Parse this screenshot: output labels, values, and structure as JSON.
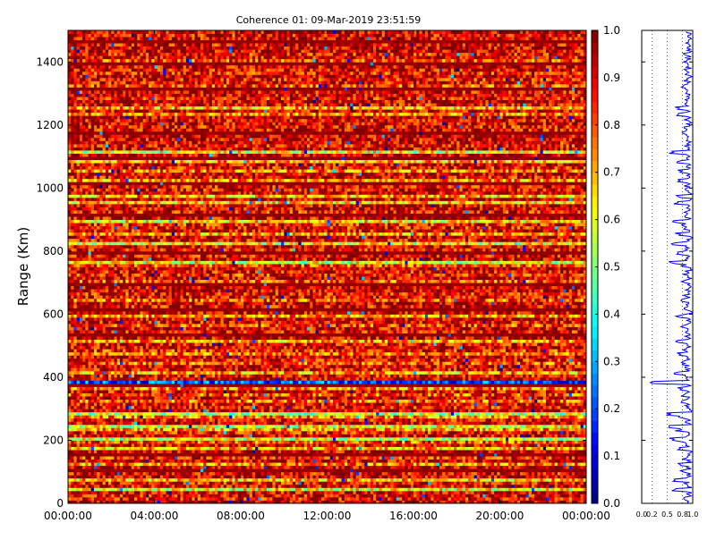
{
  "chart_data": [
    {
      "type": "heatmap",
      "title": "Coherence 01: 09-Mar-2019 23:51:59",
      "ylabel": "Range (Km)",
      "xlabel": "",
      "x_ticks": [
        "00:00:00",
        "04:00:00",
        "08:00:00",
        "12:00:00",
        "16:00:00",
        "20:00:00",
        "00:00:00"
      ],
      "x_range_hours": [
        0,
        24
      ],
      "y_ticks": [
        0,
        200,
        400,
        600,
        800,
        1000,
        1200,
        1400
      ],
      "ylim": [
        0,
        1500
      ],
      "colormap": "jet",
      "colorbar": {
        "ticks": [
          "0.0",
          "0.1",
          "0.2",
          "0.3",
          "0.4",
          "0.5",
          "0.6",
          "0.7",
          "0.8",
          "0.9",
          "1.0"
        ],
        "range": [
          0,
          1
        ]
      },
      "range_step_km": 10,
      "time_steps": 180,
      "range_profile_mean_coherence": [
        0.93,
        0.88,
        0.9,
        0.92,
        0.62,
        0.92,
        0.88,
        0.68,
        0.92,
        0.9,
        0.82,
        0.93,
        0.74,
        0.92,
        0.86,
        0.9,
        0.93,
        0.7,
        0.92,
        0.8,
        0.58,
        0.92,
        0.88,
        0.72,
        0.6,
        0.92,
        0.9,
        0.74,
        0.55,
        0.93,
        0.88,
        0.9,
        0.78,
        0.92,
        0.82,
        0.9,
        0.75,
        0.93,
        0.2,
        0.93,
        0.88,
        0.7,
        0.9,
        0.92,
        0.8,
        0.88,
        0.93,
        0.76,
        0.85,
        0.92,
        0.9,
        0.7,
        0.93,
        0.88,
        0.9,
        0.92,
        0.82,
        0.9,
        0.93,
        0.72,
        0.92,
        0.88,
        0.9,
        0.92,
        0.8,
        0.9,
        0.88,
        0.92,
        0.93,
        0.9,
        0.8,
        0.92,
        0.86,
        0.9,
        0.93,
        0.82,
        0.6,
        0.92,
        0.9,
        0.68,
        0.88,
        0.92,
        0.62,
        0.9,
        0.93,
        0.72,
        0.9,
        0.88,
        0.85,
        0.65,
        0.92,
        0.9,
        0.88,
        0.92,
        0.93,
        0.66,
        0.92,
        0.7,
        0.93,
        0.9,
        0.88,
        0.92,
        0.72,
        0.9,
        0.93,
        0.76,
        0.88,
        0.92,
        0.7,
        0.9,
        0.93,
        0.6,
        0.92,
        0.88,
        0.9,
        0.92,
        0.93,
        0.82,
        0.9,
        0.88,
        0.92,
        0.9,
        0.93,
        0.74,
        0.92,
        0.7,
        0.9,
        0.92,
        0.88,
        0.93,
        0.9,
        0.92,
        0.82,
        0.9,
        0.88,
        0.93,
        0.86,
        0.9,
        0.92,
        0.93,
        0.82,
        0.9,
        0.88,
        0.92,
        0.93,
        0.9,
        0.88,
        0.92,
        0.9,
        0.93
      ],
      "stripe_rows_km_dark": [
        100,
        150,
        370,
        530,
        610,
        690,
        790,
        910,
        1010,
        1090,
        1170,
        1310,
        1390,
        1460
      ]
    },
    {
      "type": "line",
      "title": "",
      "xlabel": "",
      "ylabel": "",
      "x_ticks": [
        "0.0",
        "0.2",
        "0.5",
        "0.8",
        "1.0"
      ],
      "xlim": [
        0,
        1
      ],
      "ylim": [
        0,
        1500
      ],
      "grid": "x-dotted"
    }
  ]
}
